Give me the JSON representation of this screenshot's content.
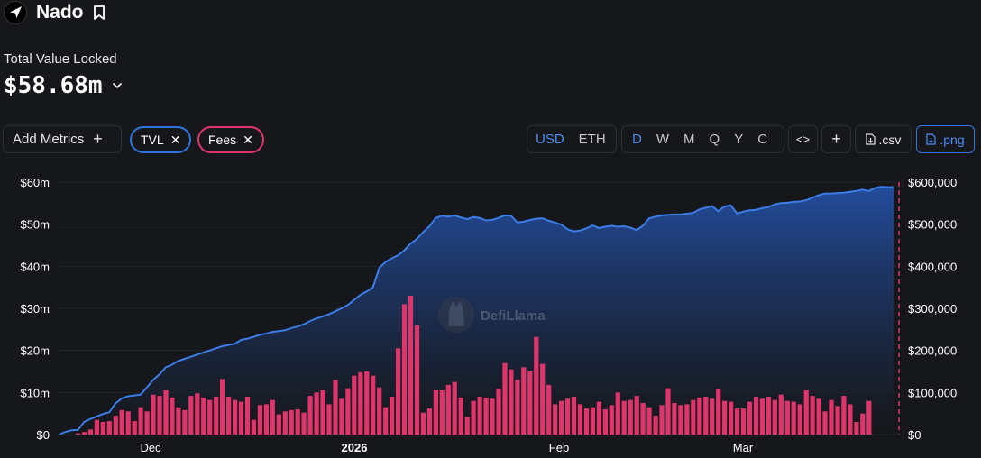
{
  "header": {
    "title": "Nado"
  },
  "tvl": {
    "label": "Total Value Locked",
    "value": "$58.68m"
  },
  "toolbar": {
    "add_metrics": "Add Metrics",
    "add_icon": "+",
    "pills": [
      {
        "label": "TVL",
        "color": "#2f74e0"
      },
      {
        "label": "Fees",
        "color": "#e0356a"
      }
    ],
    "currency": [
      "USD",
      "ETH"
    ],
    "currency_active": "USD",
    "periods": [
      "D",
      "W",
      "M",
      "Q",
      "Y",
      "C"
    ],
    "period_active": "D",
    "embed": "<>",
    "plus": "+",
    "csv": ".csv",
    "png": ".png"
  },
  "watermark": "DefiLlama",
  "chart_data": {
    "type": "area+bar",
    "x_ticks": [
      {
        "label": "Dec",
        "bold": false
      },
      {
        "label": "2026",
        "bold": true
      },
      {
        "label": "Feb",
        "bold": false
      },
      {
        "label": "Mar",
        "bold": false
      }
    ],
    "y_left_ticks": [
      "$0",
      "$10m",
      "$20m",
      "$30m",
      "$40m",
      "$50m",
      "$60m"
    ],
    "y_right_ticks": [
      "$0",
      "$100,000",
      "$200,000",
      "$300,000",
      "$400,000",
      "$500,000",
      "$600,000"
    ],
    "y_left_lim": [
      0,
      60000000
    ],
    "y_right_lim": [
      0,
      600000
    ],
    "series": [
      {
        "name": "TVL",
        "color": "#3b7de8",
        "values": [
          0.0,
          0.6,
          1.0,
          1.1,
          3.0,
          3.7,
          4.3,
          4.9,
          5.3,
          7.4,
          8.6,
          9.1,
          9.3,
          9.5,
          11.2,
          13.0,
          14.3,
          16.0,
          16.6,
          17.5,
          18.0,
          18.5,
          19.0,
          19.5,
          20.0,
          20.5,
          21.0,
          21.3,
          21.6,
          22.5,
          22.8,
          23.2,
          23.7,
          24.0,
          24.4,
          24.6,
          24.8,
          25.3,
          25.7,
          26.2,
          27.0,
          27.6,
          28.1,
          28.6,
          29.3,
          30.0,
          30.8,
          32.0,
          33.2,
          34.0,
          35.0,
          39.6,
          41.0,
          41.9,
          42.6,
          43.8,
          45.4,
          46.5,
          48.1,
          49.5,
          51.5,
          52.0,
          51.8,
          52.1,
          51.6,
          51.2,
          51.7,
          51.5,
          50.9,
          51.0,
          51.5,
          52.1,
          52.0,
          50.4,
          50.6,
          51.0,
          51.3,
          51.4,
          50.8,
          50.4,
          49.9,
          48.8,
          48.3,
          48.5,
          49.0,
          49.7,
          49.1,
          49.4,
          49.6,
          49.4,
          49.5,
          49.2,
          48.6,
          49.6,
          51.4,
          51.8,
          52.1,
          52.2,
          52.3,
          52.3,
          52.5,
          52.7,
          53.5,
          53.9,
          54.3,
          53.1,
          54.2,
          54.5,
          52.5,
          53.0,
          53.3,
          53.4,
          53.8,
          54.1,
          54.7,
          55.0,
          55.1,
          55.3,
          55.4,
          55.7,
          56.3,
          56.9,
          57.3,
          57.3,
          57.4,
          57.5,
          57.7,
          57.9,
          58.2,
          57.9,
          58.6,
          58.9,
          58.8,
          58.8
        ]
      },
      {
        "name": "Fees",
        "color": "#e0356a",
        "values": [
          0,
          0,
          0,
          3000,
          6000,
          12000,
          35000,
          30000,
          32000,
          45000,
          58000,
          55000,
          32000,
          65000,
          55000,
          95000,
          92000,
          105000,
          88000,
          65000,
          58000,
          92000,
          98000,
          88000,
          82000,
          90000,
          132000,
          90000,
          82000,
          78000,
          90000,
          35000,
          70000,
          72000,
          82000,
          48000,
          55000,
          58000,
          60000,
          52000,
          92000,
          100000,
          105000,
          72000,
          130000,
          85000,
          110000,
          140000,
          148000,
          150000,
          140000,
          112000,
          65000,
          90000,
          205000,
          310000,
          330000,
          260000,
          52000,
          62000,
          105000,
          105000,
          118000,
          125000,
          88000,
          42000,
          80000,
          90000,
          88000,
          85000,
          108000,
          170000,
          155000,
          130000,
          160000,
          150000,
          232000,
          168000,
          118000,
          72000,
          80000,
          85000,
          90000,
          72000,
          62000,
          65000,
          78000,
          60000,
          70000,
          100000,
          80000,
          82000,
          92000,
          75000,
          65000,
          45000,
          70000,
          110000,
          75000,
          70000,
          72000,
          82000,
          88000,
          90000,
          85000,
          108000,
          80000,
          78000,
          62000,
          62000,
          78000,
          90000,
          85000,
          90000,
          82000,
          95000,
          80000,
          78000,
          72000,
          105000,
          92000,
          85000,
          55000,
          82000,
          68000,
          92000,
          72000,
          30000,
          50000,
          80000
        ]
      }
    ]
  }
}
